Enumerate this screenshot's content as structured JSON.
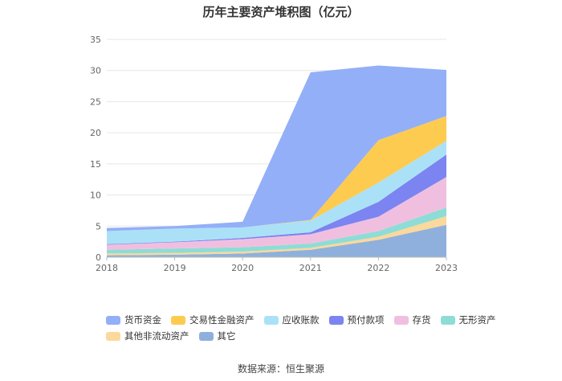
{
  "chart_data": {
    "type": "area",
    "stacked": true,
    "title": "历年主要资产堆积图（亿元）",
    "categories": [
      "2018",
      "2019",
      "2020",
      "2021",
      "2022",
      "2023"
    ],
    "ylim": [
      0,
      35
    ],
    "yticks": [
      0,
      5,
      10,
      15,
      20,
      25,
      30,
      35
    ],
    "grid": true,
    "legend_position": "bottom",
    "series": [
      {
        "name": "其它",
        "color": "#8fb0dc",
        "values": [
          0.3,
          0.4,
          0.6,
          1.2,
          2.8,
          5.2
        ]
      },
      {
        "name": "其他非流动资产",
        "color": "#fbd89b",
        "values": [
          0.3,
          0.3,
          0.3,
          0.3,
          0.5,
          1.4
        ]
      },
      {
        "name": "无形资产",
        "color": "#8edcd6",
        "values": [
          0.6,
          0.7,
          0.7,
          0.7,
          0.9,
          1.4
        ]
      },
      {
        "name": "存货",
        "color": "#f0bfe0",
        "values": [
          0.8,
          1.0,
          1.3,
          1.5,
          2.3,
          4.9
        ]
      },
      {
        "name": "预付款项",
        "color": "#7b84f0",
        "values": [
          0.1,
          0.1,
          0.2,
          0.3,
          2.4,
          3.6
        ]
      },
      {
        "name": "应收账款",
        "color": "#abe1f7",
        "values": [
          2.1,
          2.1,
          1.7,
          1.9,
          3.1,
          2.2
        ]
      },
      {
        "name": "交易性金融资产",
        "color": "#fdcb4f",
        "values": [
          0.0,
          0.0,
          0.0,
          0.1,
          6.8,
          4.0
        ]
      },
      {
        "name": "货币资金",
        "color": "#93aff8",
        "values": [
          0.5,
          0.4,
          0.9,
          23.7,
          12.0,
          7.4
        ]
      }
    ],
    "legend_order": [
      "货币资金",
      "交易性金融资产",
      "应收账款",
      "预付款项",
      "存货",
      "无形资产",
      "其他非流动资产",
      "其它"
    ],
    "source": "数据来源：恒生聚源"
  }
}
